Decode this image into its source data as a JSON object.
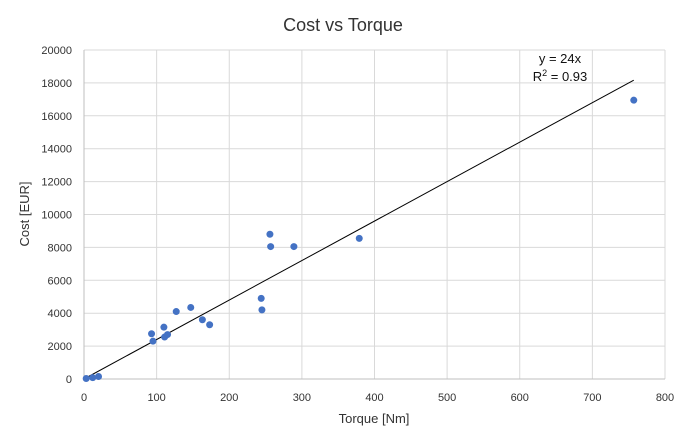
{
  "chart_data": {
    "type": "scatter",
    "title": "Cost vs Torque",
    "xlabel": "Torque [Nm]",
    "ylabel": "Cost [EUR]",
    "xlim": [
      0,
      800
    ],
    "ylim": [
      0,
      20000
    ],
    "xticks": [
      0,
      100,
      200,
      300,
      400,
      500,
      600,
      700,
      800
    ],
    "yticks": [
      0,
      2000,
      4000,
      6000,
      8000,
      10000,
      12000,
      14000,
      16000,
      18000,
      20000
    ],
    "grid": true,
    "series": [
      {
        "color": "#4472c4",
        "points": [
          [
            3,
            30
          ],
          [
            12,
            80
          ],
          [
            20,
            150
          ],
          [
            93,
            2750
          ],
          [
            95,
            2300
          ],
          [
            110,
            3150
          ],
          [
            111,
            2550
          ],
          [
            115,
            2700
          ],
          [
            127,
            4100
          ],
          [
            147,
            4350
          ],
          [
            163,
            3600
          ],
          [
            173,
            3300
          ],
          [
            244,
            4900
          ],
          [
            245,
            4200
          ],
          [
            256,
            8800
          ],
          [
            257,
            8050
          ],
          [
            289,
            8050
          ],
          [
            379,
            8550
          ],
          [
            757,
            16950
          ]
        ]
      }
    ],
    "trendline": {
      "type": "linear",
      "slope": 24,
      "x_range": [
        0,
        757
      ],
      "equation": "y = 24x",
      "r2_prefix": "R",
      "r2_sup": "2",
      "r2_suffix": " = 0.93"
    }
  }
}
